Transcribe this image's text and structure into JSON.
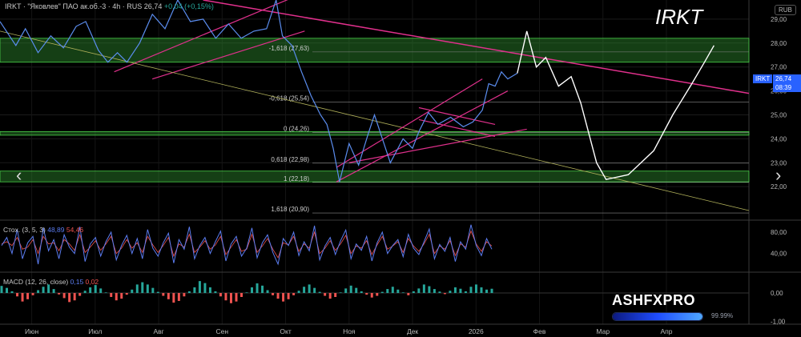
{
  "header": {
    "symbol_line": "IRKT · \"Яковлев\" ПАО ак.об.-3 · 4h · RUS",
    "price": "26,74",
    "change": "+0,04 (+0,15%)"
  },
  "watermark": "IRKT",
  "currency": "RUB",
  "price_tag": {
    "symbol": "IRKT",
    "price": "26,74",
    "countdown": "08:39"
  },
  "brand": {
    "name": "ASHFXPRO",
    "progress_label": "99.99%",
    "progress": 0.9999
  },
  "colors": {
    "price_line": "#5b8def",
    "trend": "#e0308c",
    "zone": "#2e8b2e",
    "stoch_k": "#5b7cf0",
    "stoch_d": "#ef5350",
    "macd_pos": "#26a69a",
    "macd_neg": "#ef5350"
  },
  "nav": {
    "left_arrow": "‹",
    "right_arrow": "›"
  },
  "chart_data": {
    "type": "line",
    "price_axis": {
      "labels": [
        "29,00",
        "28,00",
        "27,00",
        "26,00",
        "25,00",
        "24,00",
        "23,00",
        "22,00"
      ],
      "values": [
        29,
        28,
        27,
        26,
        25,
        24,
        23,
        22
      ],
      "range": [
        20.6,
        29.8
      ]
    },
    "time_axis": {
      "labels": [
        "Июн",
        "Июл",
        "Авг",
        "Сен",
        "Окт",
        "Ноя",
        "Дек",
        "2026",
        "Фев",
        "Мар",
        "Апр"
      ],
      "x_index": [
        0.5,
        1.5,
        2.5,
        3.5,
        4.5,
        5.5,
        6.5,
        7.5,
        8.5,
        9.5,
        10.5
      ]
    },
    "price_series": [
      [
        0,
        28.9
      ],
      [
        0.25,
        27.9
      ],
      [
        0.4,
        28.6
      ],
      [
        0.6,
        27.6
      ],
      [
        0.8,
        28.3
      ],
      [
        1.0,
        27.8
      ],
      [
        1.2,
        28.7
      ],
      [
        1.35,
        28.9
      ],
      [
        1.55,
        27.7
      ],
      [
        1.7,
        27.2
      ],
      [
        1.85,
        27.6
      ],
      [
        2.0,
        27.2
      ],
      [
        2.2,
        28.0
      ],
      [
        2.4,
        29.2
      ],
      [
        2.6,
        28.6
      ],
      [
        2.8,
        29.8
      ],
      [
        3.0,
        28.9
      ],
      [
        3.2,
        29.0
      ],
      [
        3.4,
        28.2
      ],
      [
        3.6,
        28.8
      ],
      [
        3.8,
        28.2
      ],
      [
        4.0,
        28.5
      ],
      [
        4.2,
        28.6
      ],
      [
        4.35,
        29.8
      ],
      [
        4.45,
        28.3
      ],
      [
        4.6,
        27.9
      ],
      [
        4.75,
        26.8
      ],
      [
        4.9,
        25.8
      ],
      [
        5.05,
        25.0
      ],
      [
        5.15,
        24.6
      ],
      [
        5.25,
        23.6
      ],
      [
        5.35,
        22.2
      ],
      [
        5.5,
        23.8
      ],
      [
        5.65,
        22.9
      ],
      [
        5.8,
        24.2
      ],
      [
        5.9,
        25.0
      ],
      [
        6.0,
        24.2
      ],
      [
        6.15,
        23.0
      ],
      [
        6.35,
        24.0
      ],
      [
        6.5,
        23.6
      ],
      [
        6.6,
        24.3
      ],
      [
        6.75,
        25.1
      ],
      [
        6.9,
        24.6
      ],
      [
        7.1,
        24.9
      ],
      [
        7.3,
        24.5
      ],
      [
        7.45,
        24.7
      ],
      [
        7.6,
        25.2
      ],
      [
        7.7,
        26.3
      ],
      [
        7.8,
        26.2
      ],
      [
        7.9,
        26.8
      ],
      [
        8.0,
        26.5
      ],
      [
        8.15,
        26.74
      ]
    ],
    "stochastic": {
      "label": "Стох. (3, 5, 3)",
      "k_value": "48,89",
      "d_value": "54,46",
      "axis_labels": [
        "80,00",
        "40,00"
      ],
      "axis_values": [
        80,
        40
      ],
      "range": [
        5,
        98
      ],
      "k": [
        55,
        70,
        40,
        85,
        30,
        60,
        72,
        20,
        88,
        45,
        66,
        30,
        75,
        52,
        40,
        90,
        25,
        58,
        70,
        35,
        62,
        80,
        28,
        55,
        74,
        40,
        68,
        30,
        85,
        50,
        35,
        60,
        78,
        22,
        66,
        48,
        90,
        30,
        55,
        70,
        40,
        62,
        82,
        26,
        58,
        72,
        35,
        50,
        88,
        32,
        60,
        75,
        42,
        20,
        68,
        55,
        80,
        36,
        62,
        45,
        92,
        28,
        54,
        70,
        38,
        64,
        84,
        30,
        58,
        46,
        72,
        26,
        60,
        80,
        40,
        55,
        66,
        34,
        76,
        50,
        38,
        62,
        86,
        30,
        57,
        44,
        70,
        25,
        62,
        48,
        94,
        55,
        36,
        68,
        48
      ],
      "d": [
        58,
        62,
        55,
        70,
        48,
        52,
        66,
        40,
        72,
        58,
        60,
        45,
        66,
        58,
        46,
        75,
        42,
        52,
        64,
        46,
        58,
        72,
        40,
        50,
        66,
        50,
        60,
        42,
        72,
        56,
        42,
        55,
        70,
        35,
        58,
        52,
        76,
        42,
        52,
        64,
        48,
        56,
        72,
        38,
        52,
        66,
        44,
        48,
        76,
        42,
        54,
        68,
        48,
        32,
        60,
        56,
        72,
        44,
        58,
        50,
        80,
        40,
        50,
        64,
        46,
        58,
        74,
        40,
        54,
        50,
        64,
        38,
        56,
        72,
        48,
        54,
        62,
        42,
        68,
        54,
        44,
        58,
        76,
        40,
        54,
        48,
        64,
        36,
        58,
        52,
        82,
        58,
        44,
        62,
        54
      ]
    },
    "macd": {
      "label": "MACD (12, 26, close)",
      "macd_value": "0,15",
      "signal_value": "0,02",
      "axis_labels": [
        "0,00",
        "-1,00"
      ],
      "axis_values": [
        0,
        -1
      ],
      "range": [
        -1.1,
        0.65
      ],
      "hist": [
        0.25,
        0.18,
        0.06,
        -0.12,
        -0.3,
        -0.22,
        -0.08,
        0.1,
        0.22,
        0.3,
        0.14,
        -0.05,
        -0.18,
        -0.32,
        -0.26,
        -0.1,
        0.08,
        0.2,
        0.28,
        0.16,
        0.02,
        -0.14,
        -0.26,
        -0.2,
        -0.06,
        0.12,
        0.3,
        0.38,
        0.3,
        0.18,
        0.04,
        -0.1,
        -0.22,
        -0.34,
        -0.28,
        -0.12,
        0.06,
        0.2,
        0.42,
        0.35,
        0.2,
        0.06,
        -0.12,
        -0.26,
        -0.36,
        -0.3,
        -0.14,
        0.02,
        0.2,
        0.34,
        0.26,
        0.1,
        -0.08,
        -0.2,
        -0.3,
        -0.22,
        -0.08,
        0.08,
        0.22,
        0.3,
        0.18,
        0.04,
        -0.1,
        -0.2,
        -0.14,
        0.02,
        0.16,
        0.26,
        0.18,
        0.06,
        -0.06,
        -0.16,
        -0.1,
        0.04,
        0.14,
        0.22,
        0.12,
        0.02,
        -0.08,
        0.06,
        0.16,
        0.3,
        0.24,
        0.14,
        0.05,
        -0.04,
        0.08,
        0.2,
        0.15,
        0.06,
        0.22,
        0.3,
        0.2,
        0.12,
        0.15
      ]
    },
    "fibonacci": [
      {
        "label": "-1,618 (27,63)",
        "value": 27.63
      },
      {
        "label": "-0,618 (25,54)",
        "value": 25.54
      },
      {
        "label": "0 (24,26)",
        "value": 24.26
      },
      {
        "label": "0,618 (22,98)",
        "value": 22.98
      },
      {
        "label": "1 (22,18)",
        "value": 22.18
      },
      {
        "label": "1,618 (20,90)",
        "value": 20.9
      }
    ],
    "zones": [
      [
        27.2,
        28.2
      ],
      [
        24.15,
        24.3
      ],
      [
        22.2,
        22.65
      ]
    ],
    "projection": [
      [
        8.15,
        26.74
      ],
      [
        8.3,
        28.5
      ],
      [
        8.45,
        27.0
      ],
      [
        8.6,
        27.4
      ],
      [
        8.8,
        26.2
      ],
      [
        9.0,
        26.6
      ],
      [
        9.15,
        25.5
      ],
      [
        9.3,
        24.0
      ],
      [
        9.4,
        23.0
      ],
      [
        9.55,
        22.3
      ],
      [
        9.9,
        22.5
      ],
      [
        10.3,
        23.5
      ],
      [
        10.6,
        25.0
      ],
      [
        10.9,
        26.3
      ],
      [
        11.1,
        27.2
      ],
      [
        11.25,
        27.9
      ]
    ]
  }
}
